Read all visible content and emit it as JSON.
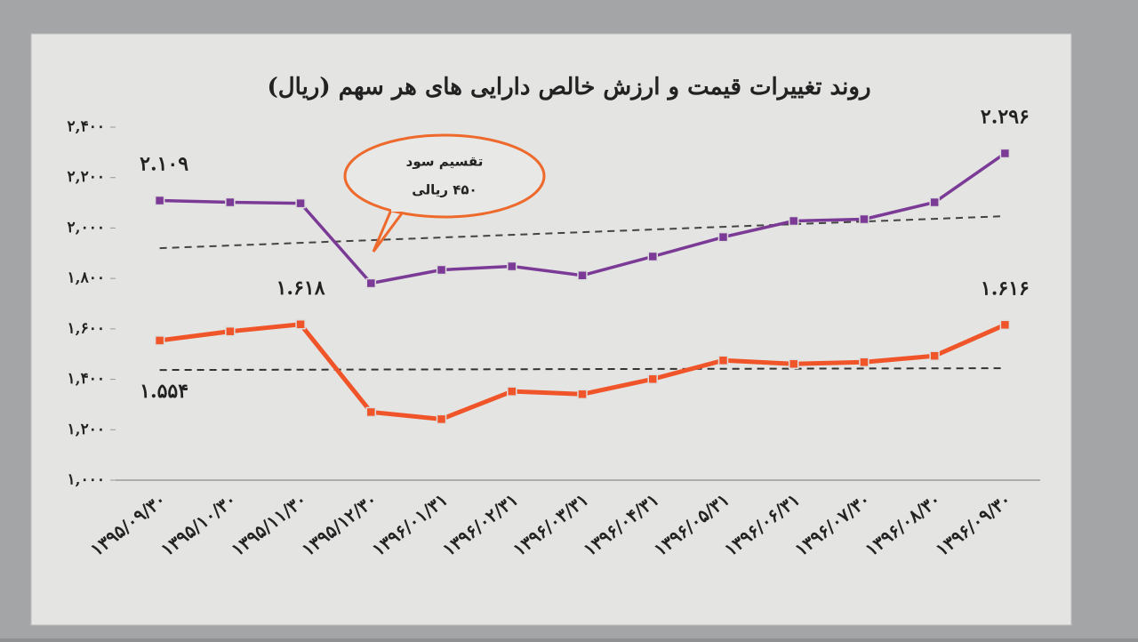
{
  "chart_data": {
    "type": "line",
    "title": "روند تغییرات قیمت و ارزش خالص دارایی های هر سهم (ریال)",
    "categories": [
      "۱۳۹۵/۰۹/۳۰",
      "۱۳۹۵/۱۰/۳۰",
      "۱۳۹۵/۱۱/۳۰",
      "۱۳۹۵/۱۲/۳۰",
      "۱۳۹۶/۰۱/۳۱",
      "۱۳۹۶/۰۲/۳۱",
      "۱۳۹۶/۰۳/۳۱",
      "۱۳۹۶/۰۴/۳۱",
      "۱۳۹۶/۰۵/۳۱",
      "۱۳۹۶/۰۶/۳۱",
      "۱۳۹۶/۰۷/۳۰",
      "۱۳۹۶/۰۸/۳۰",
      "۱۳۹۶/۰۹/۳۰"
    ],
    "series": [
      {
        "color": "#7a3a96",
        "values": [
          2109,
          2102,
          2098,
          1781,
          1834,
          1848,
          1812,
          1887,
          1964,
          2028,
          2035,
          2102,
          2296
        ],
        "value_labels": [
          "۲.۱۰۹",
          null,
          null,
          null,
          null,
          null,
          null,
          null,
          null,
          null,
          null,
          null,
          "۲.۲۹۶"
        ]
      },
      {
        "color": "#f0552a",
        "values": [
          1554,
          1590,
          1618,
          1270,
          1242,
          1352,
          1341,
          1401,
          1475,
          1461,
          1468,
          1493,
          1616
        ],
        "value_labels": [
          "۱.۵۵۴",
          null,
          "۱.۶۱۸",
          null,
          null,
          null,
          null,
          null,
          null,
          null,
          null,
          null,
          "۱.۶۱۶"
        ]
      }
    ],
    "trend_lines": [
      {
        "color": "#444444",
        "values": [
          1920,
          2047
        ]
      },
      {
        "color": "#333333",
        "values": [
          1437,
          1444
        ]
      }
    ],
    "annotation": {
      "lines": [
        "تقسیم سود",
        "۴۵۰ ریالی"
      ],
      "color": "#ee6a2c"
    },
    "ylim": [
      1000,
      2400
    ],
    "yticks": [
      {
        "value": 1000,
        "label": "۱,۰۰۰"
      },
      {
        "value": 1200,
        "label": "۱,۲۰۰"
      },
      {
        "value": 1400,
        "label": "۱,۴۰۰"
      },
      {
        "value": 1600,
        "label": "۱,۶۰۰"
      },
      {
        "value": 1800,
        "label": "۱,۸۰۰"
      },
      {
        "value": 2000,
        "label": "۲,۰۰۰"
      },
      {
        "value": 2200,
        "label": "۲,۲۰۰"
      },
      {
        "value": 2400,
        "label": "۲,۴۰۰"
      }
    ],
    "grid": false
  }
}
